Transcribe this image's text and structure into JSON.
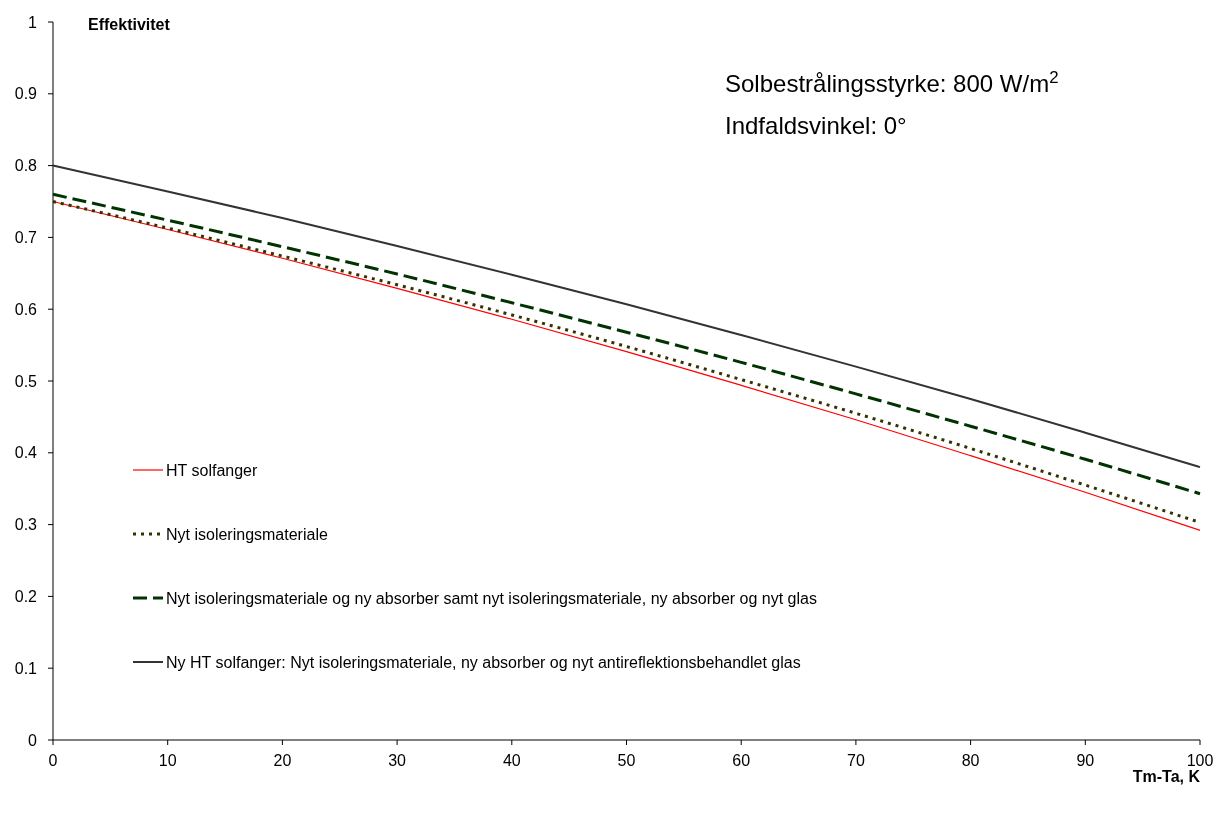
{
  "chart_data": {
    "type": "line",
    "xlabel": "Tm-Ta, K",
    "ylabel": "Effektivitet",
    "annotations": [
      "Solbestrålingsstyrke: 800 W/m$^{2}$",
      "Indfaldsvinkel: 0°"
    ],
    "x": [
      0,
      10,
      20,
      30,
      40,
      50,
      60,
      70,
      80,
      90,
      100
    ],
    "xlim": [
      0,
      100
    ],
    "xticks": [
      0,
      10,
      20,
      30,
      40,
      50,
      60,
      70,
      80,
      90,
      100
    ],
    "ylim": [
      0,
      1
    ],
    "yticks": [
      0,
      0.1,
      0.2,
      0.3,
      0.4,
      0.5,
      0.6,
      0.7,
      0.8,
      0.9,
      1
    ],
    "grid": false,
    "legend": "bottom left",
    "marker": "none",
    "series": [
      {
        "name": "HT solfanger",
        "color": "#ff0000",
        "line_style": "solid",
        "values": [
          0.75,
          0.711,
          0.671,
          0.629,
          0.586,
          0.541,
          0.494,
          0.446,
          0.396,
          0.345,
          0.292
        ]
      },
      {
        "name": "Nyt isoleringsmateriale",
        "color": "#333300",
        "line_style": "dotted",
        "values": [
          0.75,
          0.713,
          0.674,
          0.634,
          0.592,
          0.548,
          0.502,
          0.455,
          0.406,
          0.355,
          0.303
        ]
      },
      {
        "name": "Nyt isoleringsmateriale og ny absorber samt nyt isoleringsmateriale, ny absorber og nyt glas",
        "color": "#003300",
        "line_style": "dashed",
        "values": [
          0.76,
          0.724,
          0.687,
          0.649,
          0.609,
          0.568,
          0.526,
          0.482,
          0.437,
          0.391,
          0.343
        ]
      },
      {
        "name": "Ny HT solfanger: Nyt isoleringsmateriale, ny absorber og nyt antireflektionsbehandlet glas",
        "color": "#333333",
        "line_style": "solid",
        "values": [
          0.8,
          0.764,
          0.727,
          0.688,
          0.648,
          0.607,
          0.564,
          0.52,
          0.475,
          0.428,
          0.38
        ]
      }
    ]
  }
}
